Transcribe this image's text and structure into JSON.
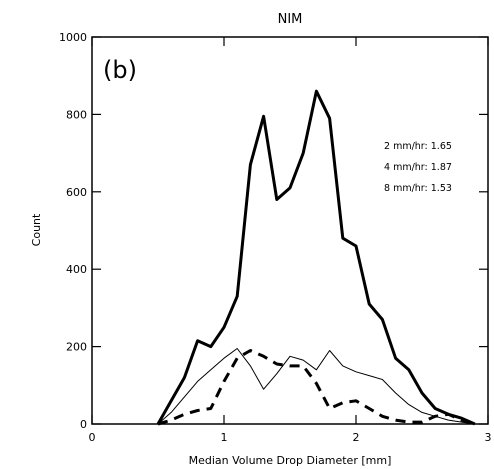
{
  "chart_data": {
    "type": "line",
    "title": "NIM",
    "panel_label": "(b)",
    "xlabel": "Median Volume Drop Diameter [mm]",
    "ylabel": "Count",
    "xlim": [
      0,
      3
    ],
    "ylim": [
      0,
      1000
    ],
    "x_ticks": [
      0,
      1,
      2,
      3
    ],
    "y_ticks": [
      0,
      200,
      400,
      600,
      800,
      1000
    ],
    "annotations": [
      "2 mm/hr: 1.65",
      "4 mm/hr: 1.87",
      "8 mm/hr: 1.53"
    ],
    "series": [
      {
        "style": "thick-solid",
        "x": [
          0.5,
          0.6,
          0.7,
          0.8,
          0.9,
          1.0,
          1.1,
          1.2,
          1.3,
          1.4,
          1.5,
          1.6,
          1.7,
          1.8,
          1.9,
          2.0,
          2.1,
          2.2,
          2.3,
          2.4,
          2.5,
          2.6,
          2.7,
          2.8,
          2.9
        ],
        "y": [
          0,
          60,
          120,
          215,
          200,
          250,
          330,
          670,
          795,
          580,
          610,
          700,
          860,
          790,
          480,
          460,
          310,
          270,
          170,
          140,
          80,
          40,
          25,
          15,
          0
        ]
      },
      {
        "style": "thin-solid",
        "x": [
          0.5,
          0.6,
          0.7,
          0.8,
          0.9,
          1.0,
          1.1,
          1.2,
          1.3,
          1.4,
          1.5,
          1.6,
          1.7,
          1.8,
          1.9,
          2.0,
          2.1,
          2.2,
          2.3,
          2.4,
          2.5,
          2.6,
          2.7,
          2.8,
          2.9
        ],
        "y": [
          0,
          30,
          70,
          110,
          140,
          170,
          195,
          150,
          90,
          130,
          175,
          165,
          140,
          190,
          150,
          135,
          125,
          115,
          80,
          50,
          30,
          20,
          10,
          5,
          0
        ]
      },
      {
        "style": "thick-dashed",
        "x": [
          0.5,
          0.6,
          0.7,
          0.8,
          0.9,
          1.0,
          1.1,
          1.2,
          1.3,
          1.4,
          1.5,
          1.6,
          1.7,
          1.8,
          1.9,
          2.0,
          2.1,
          2.2,
          2.3,
          2.4,
          2.5,
          2.6,
          2.7,
          2.8,
          2.9
        ],
        "y": [
          0,
          10,
          25,
          35,
          40,
          110,
          170,
          190,
          175,
          155,
          150,
          150,
          105,
          40,
          55,
          60,
          40,
          20,
          10,
          5,
          5,
          20,
          25,
          10,
          0
        ]
      }
    ]
  }
}
